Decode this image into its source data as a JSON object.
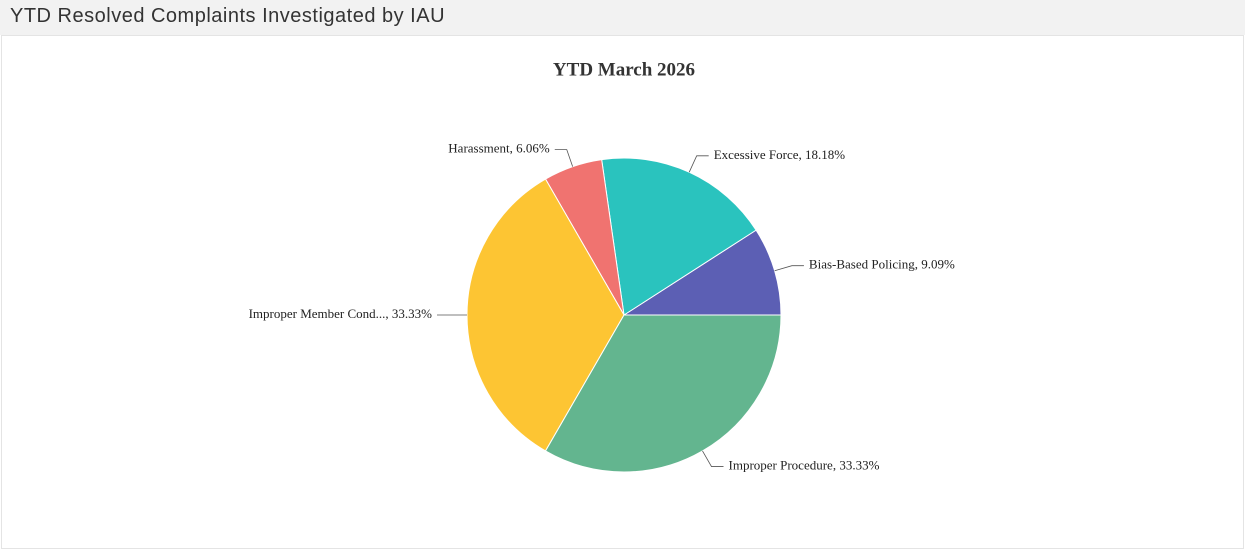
{
  "header": {
    "title": "YTD Resolved Complaints Investigated by IAU"
  },
  "chart_data": {
    "type": "pie",
    "title": "YTD March 2026",
    "values": [
      9.09,
      18.18,
      6.06,
      33.33,
      33.33
    ],
    "value_labels": [
      "Bias-Based Policing, 9.09%",
      "Excessive Force, 18.18%",
      "Harassment, 6.06%",
      "Improper Member Cond..., 33.33%",
      "Improper Procedure, 33.33%"
    ],
    "colors": [
      "#5c5fb4",
      "#2ac3be",
      "#f07370",
      "#fdc533",
      "#63b58f"
    ]
  }
}
